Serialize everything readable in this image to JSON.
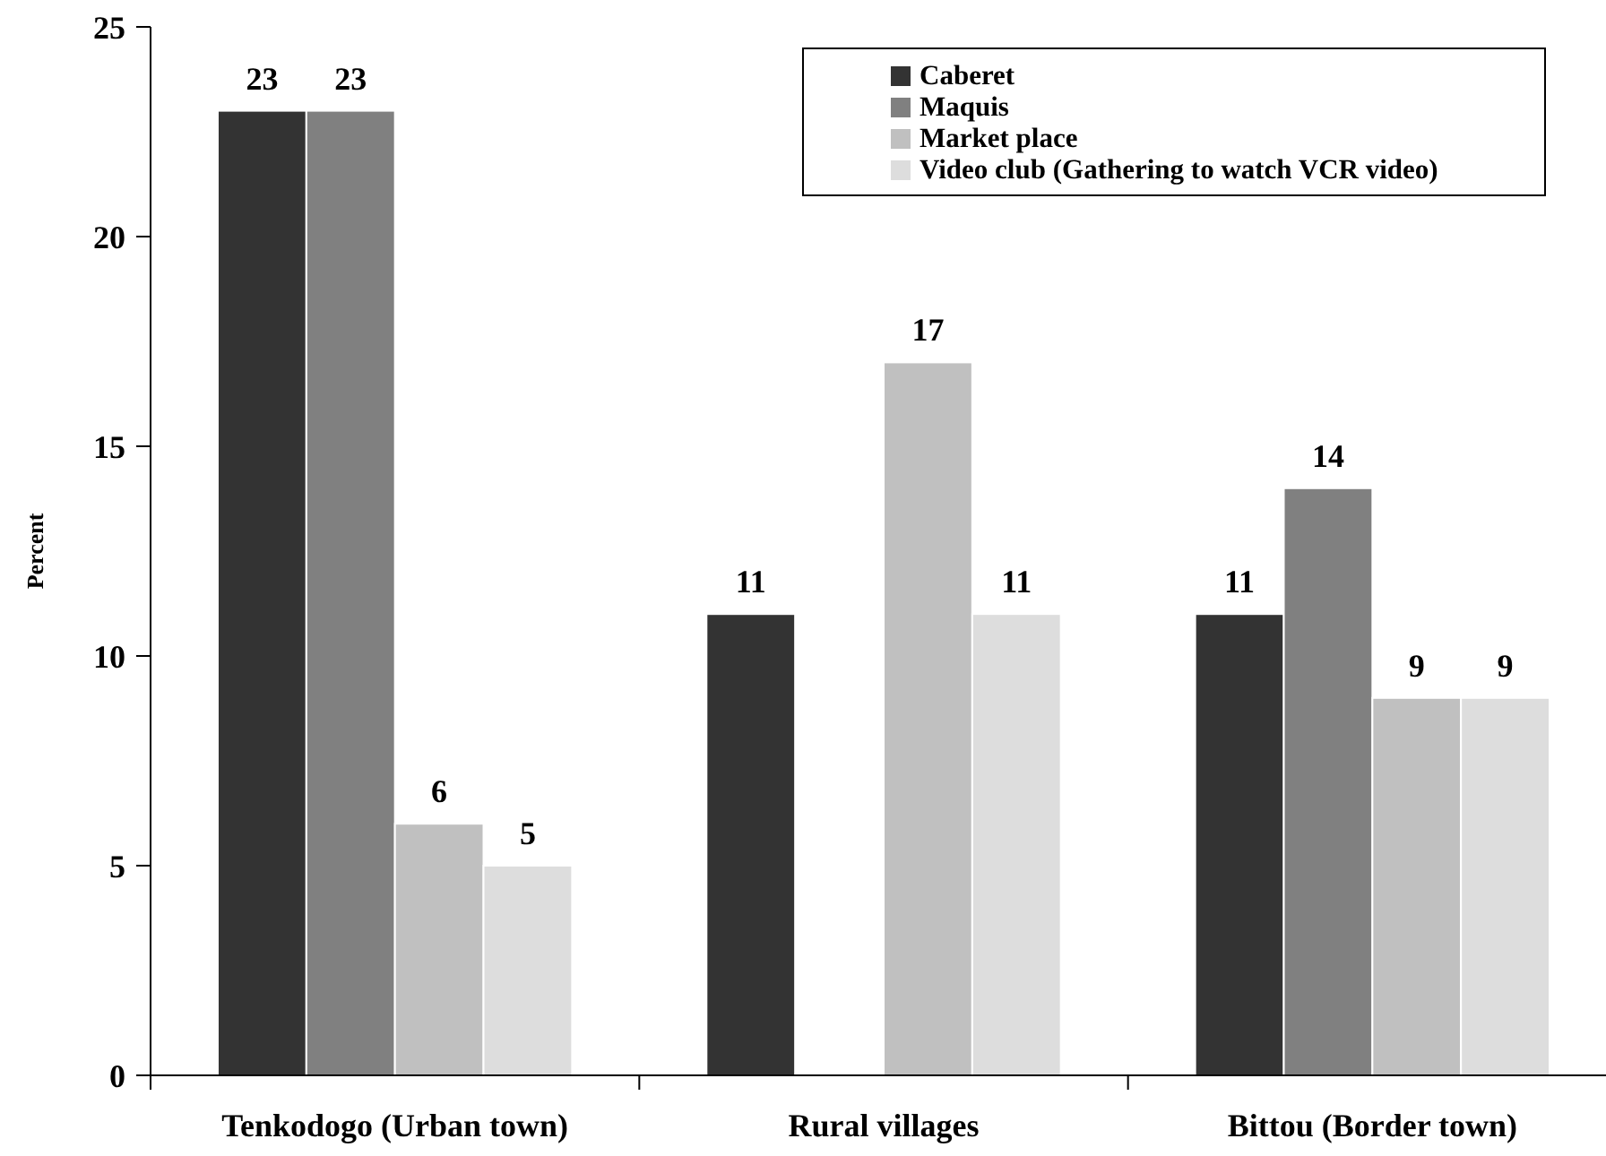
{
  "chart_data": {
    "type": "bar",
    "ylabel": "Percent",
    "categories": [
      "Tenkodogo (Urban town)",
      "Rural villages",
      "Bittou (Border town)"
    ],
    "series": [
      {
        "name": "Caberet",
        "color": "#333333",
        "values": [
          23,
          11,
          11
        ]
      },
      {
        "name": "Maquis",
        "color": "#808080",
        "values": [
          23,
          null,
          14
        ]
      },
      {
        "name": "Market place",
        "color": "#c0c0c0",
        "values": [
          6,
          17,
          9
        ]
      },
      {
        "name": "Video club (Gathering to watch VCR video)",
        "color": "#dddddd",
        "values": [
          5,
          11,
          9
        ]
      }
    ],
    "ylim": [
      0,
      25
    ],
    "yticks": [
      0,
      5,
      10,
      15,
      20,
      25
    ],
    "data_labels": true,
    "legend": "top right"
  }
}
